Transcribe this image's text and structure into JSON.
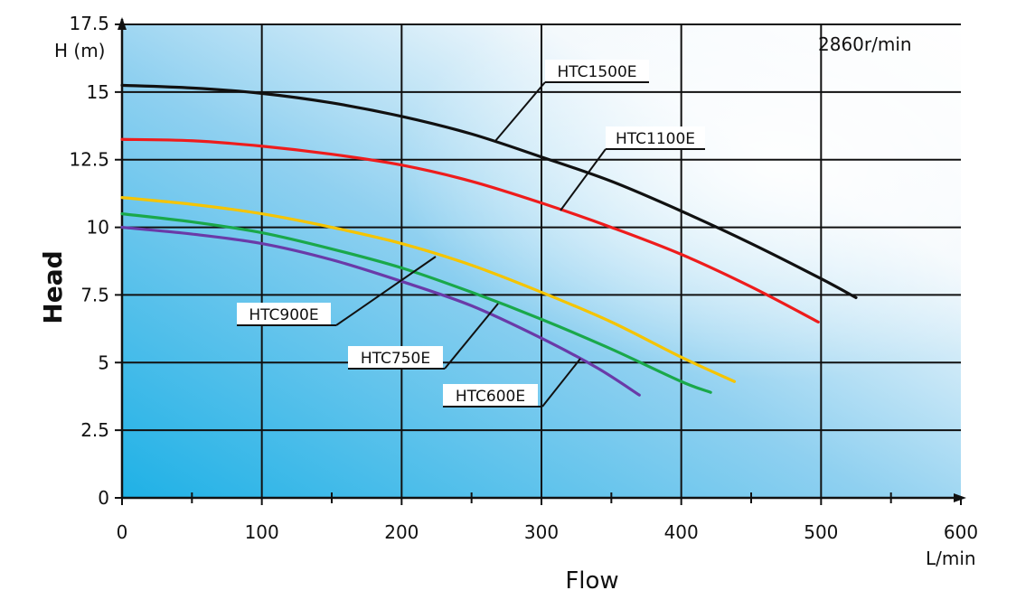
{
  "chart_data": {
    "type": "line",
    "title": "",
    "annotation": "2860r/min",
    "xlabel": "Flow",
    "x_unit": "L/min",
    "ylabel": "Head",
    "y_unit": "H (m)",
    "xlim": [
      0,
      600
    ],
    "ylim": [
      0,
      17.5
    ],
    "xticks": [
      "0",
      "100",
      "200",
      "300",
      "400",
      "500",
      "600"
    ],
    "yticks": [
      "0",
      "2.5",
      "5",
      "7.5",
      "10",
      "12.5",
      "15",
      "17.5"
    ],
    "grid": true,
    "series": [
      {
        "name": "HTC1500E",
        "color": "#111111",
        "x": [
          0,
          50,
          100,
          150,
          200,
          250,
          300,
          350,
          400,
          450,
          500,
          525
        ],
        "y": [
          15.25,
          15.15,
          14.95,
          14.6,
          14.1,
          13.45,
          12.6,
          11.7,
          10.6,
          9.4,
          8.1,
          7.4
        ]
      },
      {
        "name": "HTC1100E",
        "color": "#ee1c1c",
        "x": [
          0,
          50,
          100,
          150,
          200,
          250,
          300,
          350,
          400,
          450,
          498
        ],
        "y": [
          13.25,
          13.2,
          13.0,
          12.7,
          12.3,
          11.7,
          10.9,
          10.0,
          9.0,
          7.8,
          6.5
        ]
      },
      {
        "name": "HTC900E",
        "color": "#f5c400",
        "x": [
          0,
          50,
          100,
          150,
          200,
          250,
          300,
          350,
          400,
          438
        ],
        "y": [
          11.1,
          10.85,
          10.5,
          10.0,
          9.4,
          8.6,
          7.6,
          6.5,
          5.2,
          4.3
        ]
      },
      {
        "name": "HTC750E",
        "color": "#1aa84a",
        "x": [
          0,
          50,
          100,
          150,
          200,
          250,
          300,
          350,
          400,
          421
        ],
        "y": [
          10.5,
          10.2,
          9.8,
          9.2,
          8.5,
          7.6,
          6.6,
          5.5,
          4.3,
          3.9
        ]
      },
      {
        "name": "HTC600E",
        "color": "#6a3aa8",
        "x": [
          0,
          50,
          100,
          150,
          200,
          250,
          300,
          340,
          370
        ],
        "y": [
          10.0,
          9.75,
          9.4,
          8.8,
          8.0,
          7.1,
          5.9,
          4.8,
          3.8
        ]
      }
    ]
  }
}
